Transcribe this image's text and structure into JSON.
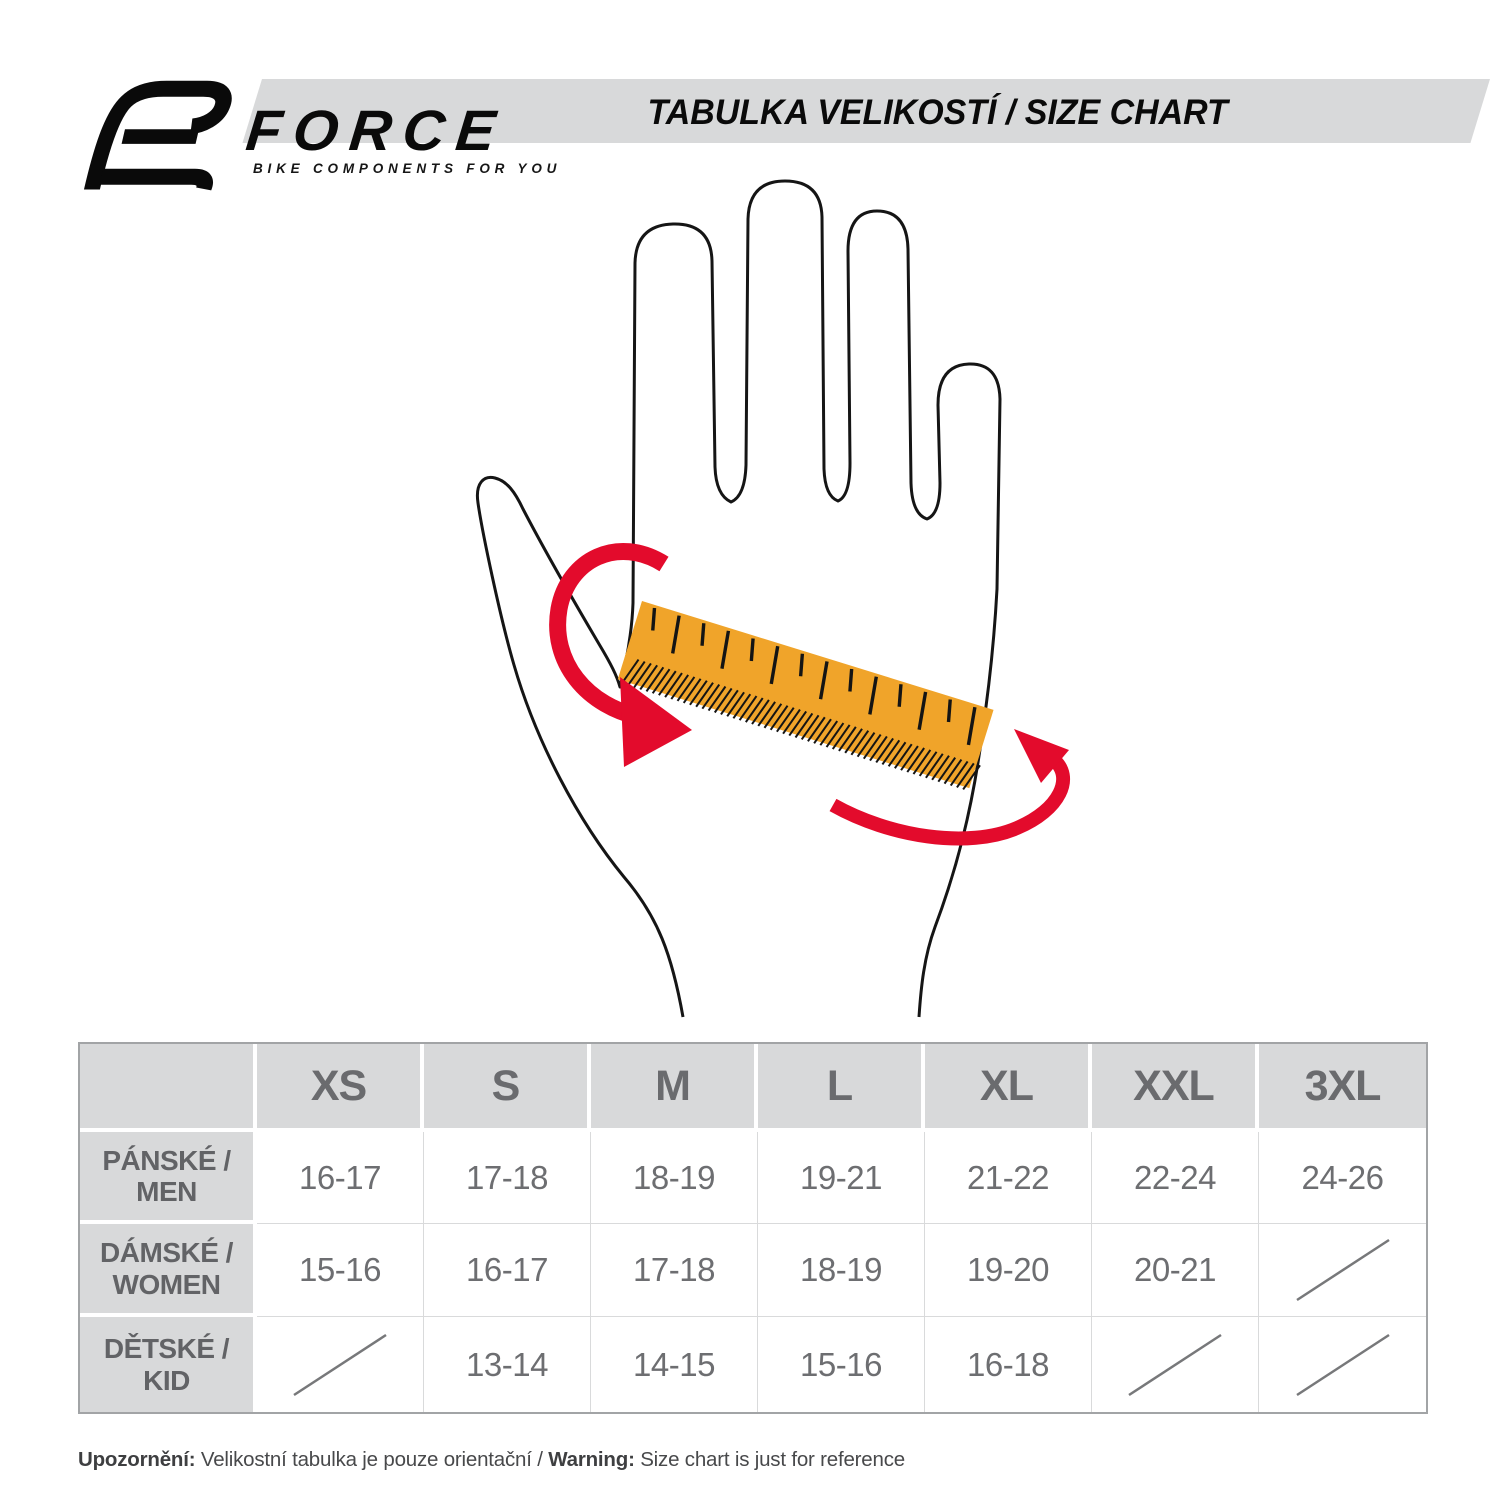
{
  "brand": {
    "name": "FORCE",
    "tagline": "BIKE COMPONENTS FOR YOU"
  },
  "title": "TABULKA VELIKOSTÍ / SIZE CHART",
  "illustration": {
    "hand": "hand-outline",
    "ruler": "measuring-ruler",
    "arrows": "wrap-around-arrows"
  },
  "size_table": {
    "columns": [
      "XS",
      "S",
      "M",
      "L",
      "XL",
      "XXL",
      "3XL"
    ],
    "rows": [
      {
        "label_cs": "PÁNSKÉ /",
        "label_en": "MEN",
        "values": [
          "16-17",
          "17-18",
          "18-19",
          "19-21",
          "21-22",
          "22-24",
          "24-26"
        ]
      },
      {
        "label_cs": "DÁMSKÉ /",
        "label_en": "WOMEN",
        "values": [
          "15-16",
          "16-17",
          "17-18",
          "18-19",
          "19-20",
          "20-21",
          null
        ]
      },
      {
        "label_cs": "DĚTSKÉ /",
        "label_en": "KID",
        "values": [
          null,
          "13-14",
          "14-15",
          "15-16",
          "16-18",
          null,
          null
        ]
      }
    ]
  },
  "footer": {
    "cs_bold": "Upozornění:",
    "cs_text": " Velikostní tabulka je pouze orientační / ",
    "en_bold": "Warning:",
    "en_text": " Size chart is just for reference"
  },
  "colors": {
    "band_gray": "#D8D9DA",
    "ruler_orange": "#F0A42A",
    "arrow_red": "#E30B2C",
    "header_text_gray": "#6A6B6E",
    "value_text_gray": "#6D6E71",
    "title_black": "#0A0A0A"
  }
}
